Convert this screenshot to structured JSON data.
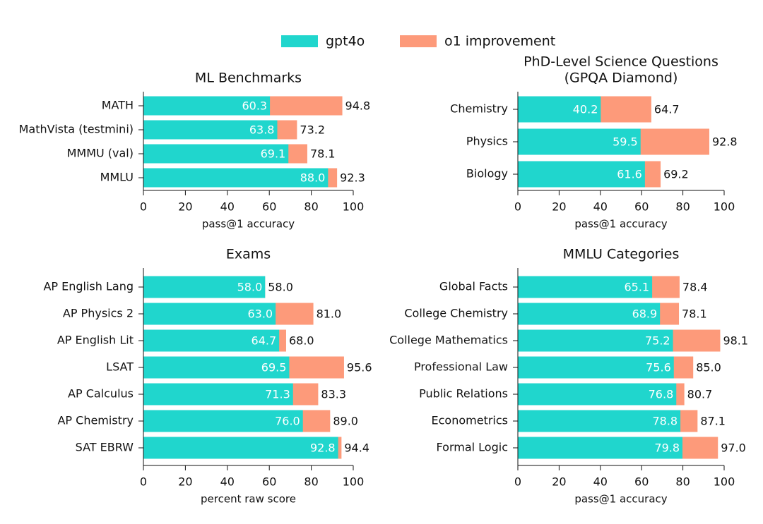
{
  "chart_data": [
    {
      "type": "bar",
      "orientation": "horizontal",
      "title": "ML Benchmarks",
      "categories": [
        "MATH",
        "MathVista (testmini)",
        "MMMU (val)",
        "MMLU"
      ],
      "series": [
        {
          "name": "gpt4o",
          "color": "#20d6cd",
          "values": [
            60.3,
            63.8,
            69.1,
            88.0
          ],
          "value_labels": [
            "60.3",
            "63.8",
            "69.1",
            "88.0"
          ]
        },
        {
          "name": "o1 improvement",
          "color": "#fd9a7a",
          "values": [
            94.8,
            73.2,
            78.1,
            92.3
          ],
          "value_labels": [
            "94.8",
            "73.2",
            "78.1",
            "92.3"
          ]
        }
      ],
      "xlabel": "pass@1 accuracy",
      "xlim": [
        0,
        100
      ],
      "xticks": [
        0,
        20,
        40,
        60,
        80,
        100
      ]
    },
    {
      "type": "bar",
      "orientation": "horizontal",
      "title": "PhD-Level Science Questions",
      "subtitle": "(GPQA Diamond)",
      "categories": [
        "Chemistry",
        "Physics",
        "Biology"
      ],
      "series": [
        {
          "name": "gpt4o",
          "color": "#20d6cd",
          "values": [
            40.2,
            59.5,
            61.6
          ],
          "value_labels": [
            "40.2",
            "59.5",
            "61.6"
          ]
        },
        {
          "name": "o1 improvement",
          "color": "#fd9a7a",
          "values": [
            64.7,
            92.8,
            69.2
          ],
          "value_labels": [
            "64.7",
            "92.8",
            "69.2"
          ]
        }
      ],
      "xlabel": "pass@1 accuracy",
      "xlim": [
        0,
        100
      ],
      "xticks": [
        0,
        20,
        40,
        60,
        80,
        100
      ]
    },
    {
      "type": "bar",
      "orientation": "horizontal",
      "title": "Exams",
      "categories": [
        "AP English Lang",
        "AP Physics 2",
        "AP English Lit",
        "LSAT",
        "AP Calculus",
        "AP Chemistry",
        "SAT EBRW"
      ],
      "series": [
        {
          "name": "gpt4o",
          "color": "#20d6cd",
          "values": [
            58.0,
            63.0,
            64.7,
            69.5,
            71.3,
            76.0,
            92.8
          ],
          "value_labels": [
            "58.0",
            "63.0",
            "64.7",
            "69.5",
            "71.3",
            "76.0",
            "92.8"
          ]
        },
        {
          "name": "o1 improvement",
          "color": "#fd9a7a",
          "values": [
            58.0,
            81.0,
            68.0,
            95.6,
            83.3,
            89.0,
            94.4
          ],
          "value_labels": [
            "58.0",
            "81.0",
            "68.0",
            "95.6",
            "83.3",
            "89.0",
            "94.4"
          ]
        }
      ],
      "xlabel": "percent raw score",
      "xlim": [
        0,
        100
      ],
      "xticks": [
        0,
        20,
        40,
        60,
        80,
        100
      ]
    },
    {
      "type": "bar",
      "orientation": "horizontal",
      "title": "MMLU Categories",
      "categories": [
        "Global Facts",
        "College Chemistry",
        "College Mathematics",
        "Professional Law",
        "Public Relations",
        "Econometrics",
        "Formal Logic"
      ],
      "series": [
        {
          "name": "gpt4o",
          "color": "#20d6cd",
          "values": [
            65.1,
            68.9,
            75.2,
            75.6,
            76.8,
            78.8,
            79.8
          ],
          "value_labels": [
            "65.1",
            "68.9",
            "75.2",
            "75.6",
            "76.8",
            "78.8",
            "79.8"
          ]
        },
        {
          "name": "o1 improvement",
          "color": "#fd9a7a",
          "values": [
            78.4,
            78.1,
            98.1,
            85.0,
            80.7,
            87.1,
            97.0
          ],
          "value_labels": [
            "78.4",
            "78.1",
            "98.1",
            "85.0",
            "80.7",
            "87.1",
            "97.0"
          ]
        }
      ],
      "xlabel": "pass@1 accuracy",
      "xlim": [
        0,
        100
      ],
      "xticks": [
        0,
        20,
        40,
        60,
        80,
        100
      ]
    }
  ]
}
